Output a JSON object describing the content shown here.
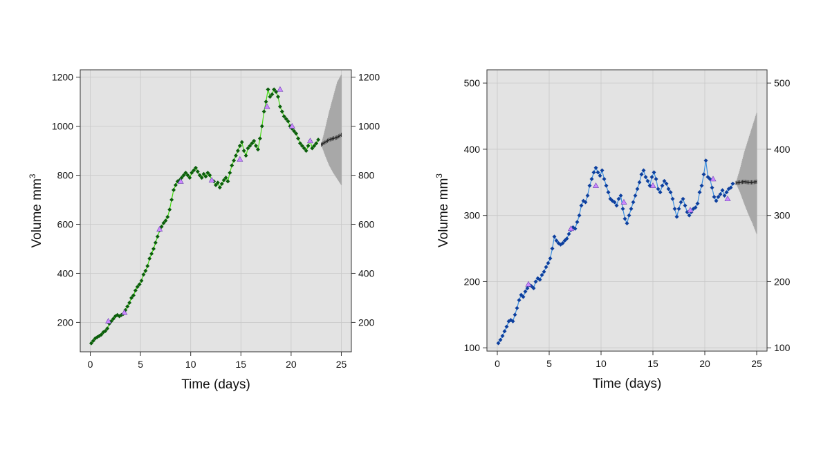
{
  "chart_data": [
    {
      "type": "scatter",
      "xlabel": "Time (days)",
      "ylabel": "Volume mm",
      "ylabel_sup": "3",
      "xlim": [
        -1,
        26
      ],
      "ylim": [
        80,
        1230
      ],
      "xticks": [
        0,
        5,
        10,
        15,
        20,
        25
      ],
      "yticks": [
        200,
        400,
        600,
        800,
        1000,
        1200
      ],
      "grid": true,
      "colors": {
        "points": "#0b5e0b",
        "line": "#44dd11",
        "marker": "#cc88ff",
        "forecast": "#222222",
        "band": "#a8a8a8"
      },
      "series": [
        {
          "x": [
            0.1,
            0.3,
            0.5,
            0.7,
            0.9,
            1.1,
            1.3,
            1.5,
            1.7,
            1.9,
            2.1,
            2.3,
            2.5,
            2.7,
            2.9,
            3.1,
            3.3,
            3.5,
            3.7,
            3.9,
            4.1,
            4.3,
            4.5,
            4.7,
            4.9,
            5.1,
            5.3,
            5.5,
            5.7,
            5.9,
            6.1,
            6.3,
            6.5,
            6.7,
            6.9,
            7.1,
            7.3,
            7.5,
            7.7,
            7.9,
            8.1,
            8.3,
            8.5,
            8.7,
            8.9,
            9.1,
            9.3,
            9.5,
            9.7,
            9.9,
            10.1,
            10.3,
            10.5,
            10.7,
            10.9,
            11.1,
            11.3,
            11.5,
            11.7,
            11.9,
            12.1,
            12.3,
            12.5,
            12.7,
            12.9,
            13.1,
            13.3,
            13.5,
            13.7,
            13.9,
            14.1,
            14.3,
            14.5,
            14.7,
            14.9,
            15.1,
            15.3,
            15.5,
            15.7,
            15.9,
            16.1,
            16.3,
            16.5,
            16.7,
            16.9,
            17.1,
            17.3,
            17.5,
            17.7,
            17.9,
            18.1,
            18.3,
            18.5,
            18.7,
            18.9,
            19.1,
            19.3,
            19.5,
            19.7,
            19.9,
            20.1,
            20.3,
            20.5,
            20.7,
            20.9,
            21.1,
            21.3,
            21.5,
            21.7,
            21.9,
            22.1,
            22.3,
            22.5,
            22.7
          ],
          "y": [
            115,
            125,
            135,
            140,
            145,
            150,
            160,
            165,
            175,
            195,
            205,
            215,
            225,
            230,
            225,
            230,
            235,
            250,
            265,
            280,
            300,
            310,
            330,
            345,
            355,
            370,
            395,
            410,
            430,
            460,
            480,
            500,
            525,
            550,
            575,
            590,
            605,
            615,
            630,
            660,
            700,
            740,
            760,
            775,
            780,
            790,
            800,
            810,
            800,
            790,
            810,
            820,
            830,
            815,
            800,
            790,
            805,
            795,
            810,
            800,
            780,
            775,
            760,
            770,
            750,
            765,
            780,
            790,
            775,
            810,
            840,
            860,
            880,
            900,
            920,
            935,
            900,
            880,
            910,
            920,
            930,
            940,
            920,
            905,
            950,
            1000,
            1060,
            1100,
            1150,
            1120,
            1130,
            1150,
            1140,
            1120,
            1080,
            1060,
            1040,
            1030,
            1020,
            1000,
            990,
            980,
            970,
            950,
            930,
            920,
            910,
            900,
            920,
            940,
            910,
            920,
            930,
            945
          ],
          "markers_x": [
            1.8,
            3.4,
            6.9,
            9.0,
            12.1,
            14.9,
            17.6,
            18.9,
            20.1,
            21.9
          ],
          "markers_y": [
            205,
            240,
            580,
            775,
            780,
            865,
            1080,
            1150,
            1000,
            940
          ],
          "forecast_x": [
            23.0,
            23.4,
            23.8,
            24.2,
            24.6,
            25.0
          ],
          "forecast_y": [
            925,
            935,
            945,
            950,
            955,
            965
          ],
          "band_lower": [
            925,
            880,
            840,
            810,
            785,
            760
          ],
          "band_upper": [
            925,
            990,
            1060,
            1120,
            1180,
            1210
          ]
        }
      ]
    },
    {
      "type": "scatter",
      "xlabel": "Time (days)",
      "ylabel": "Volume mm",
      "ylabel_sup": "3",
      "xlim": [
        -1,
        26
      ],
      "ylim": [
        95,
        520
      ],
      "xticks": [
        0,
        5,
        10,
        15,
        20,
        25
      ],
      "yticks": [
        100,
        200,
        300,
        400,
        500
      ],
      "grid": true,
      "colors": {
        "points": "#0d3f9e",
        "line": "#3b8fe0",
        "marker": "#cc88ff",
        "forecast": "#222222",
        "band": "#a8a8a8"
      },
      "series": [
        {
          "x": [
            0.1,
            0.3,
            0.5,
            0.7,
            0.9,
            1.1,
            1.3,
            1.5,
            1.7,
            1.9,
            2.1,
            2.3,
            2.5,
            2.7,
            2.9,
            3.1,
            3.3,
            3.5,
            3.7,
            3.9,
            4.1,
            4.3,
            4.5,
            4.7,
            4.9,
            5.1,
            5.3,
            5.5,
            5.7,
            5.9,
            6.1,
            6.3,
            6.5,
            6.7,
            6.9,
            7.1,
            7.3,
            7.5,
            7.7,
            7.9,
            8.1,
            8.3,
            8.5,
            8.7,
            8.9,
            9.1,
            9.3,
            9.5,
            9.7,
            9.9,
            10.1,
            10.3,
            10.5,
            10.7,
            10.9,
            11.1,
            11.3,
            11.5,
            11.7,
            11.9,
            12.1,
            12.3,
            12.5,
            12.7,
            12.9,
            13.1,
            13.3,
            13.5,
            13.7,
            13.9,
            14.1,
            14.3,
            14.5,
            14.7,
            14.9,
            15.1,
            15.3,
            15.5,
            15.7,
            15.9,
            16.1,
            16.3,
            16.5,
            16.7,
            16.9,
            17.1,
            17.3,
            17.5,
            17.7,
            17.9,
            18.1,
            18.3,
            18.5,
            18.7,
            18.9,
            19.1,
            19.3,
            19.5,
            19.7,
            19.9,
            20.1,
            20.3,
            20.5,
            20.7,
            20.9,
            21.1,
            21.3,
            21.5,
            21.7,
            21.9,
            22.1,
            22.3,
            22.5,
            22.7
          ],
          "y": [
            107,
            112,
            118,
            125,
            132,
            140,
            142,
            140,
            150,
            160,
            172,
            180,
            177,
            185,
            190,
            195,
            193,
            190,
            200,
            205,
            203,
            210,
            215,
            222,
            228,
            235,
            250,
            268,
            262,
            258,
            256,
            258,
            262,
            265,
            272,
            278,
            282,
            280,
            290,
            300,
            315,
            322,
            320,
            330,
            345,
            355,
            365,
            372,
            365,
            360,
            368,
            355,
            345,
            335,
            325,
            322,
            320,
            315,
            325,
            330,
            310,
            295,
            288,
            300,
            310,
            320,
            330,
            340,
            350,
            362,
            368,
            358,
            352,
            345,
            358,
            365,
            355,
            340,
            335,
            345,
            352,
            348,
            340,
            335,
            325,
            310,
            298,
            310,
            320,
            325,
            315,
            305,
            300,
            305,
            310,
            312,
            318,
            335,
            345,
            362,
            383,
            358,
            355,
            342,
            328,
            322,
            328,
            332,
            338,
            330,
            335,
            340,
            342,
            348
          ],
          "markers_x": [
            3.0,
            7.1,
            9.5,
            12.2,
            15.0,
            18.6,
            20.8,
            22.2
          ],
          "markers_y": [
            196,
            280,
            345,
            320,
            345,
            308,
            355,
            325
          ],
          "forecast_x": [
            23.0,
            23.4,
            23.8,
            24.2,
            24.6,
            25.0
          ],
          "forecast_y": [
            349,
            350,
            351,
            350,
            350,
            351
          ],
          "band_lower": [
            349,
            335,
            318,
            302,
            288,
            272
          ],
          "band_upper": [
            349,
            370,
            395,
            415,
            435,
            455
          ]
        }
      ]
    }
  ]
}
